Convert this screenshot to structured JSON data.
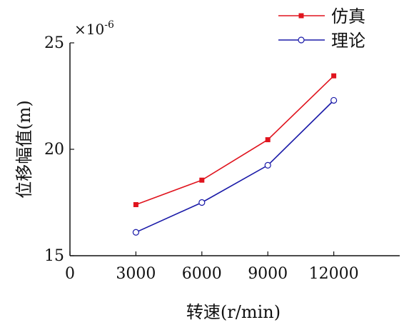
{
  "chart_data": {
    "type": "line",
    "x": [
      3000,
      6000,
      9000,
      12000
    ],
    "xticks": [
      0,
      3000,
      6000,
      9000,
      12000
    ],
    "yticks": [
      15,
      20,
      25
    ],
    "xlim": [
      0,
      15000
    ],
    "ylim": [
      15,
      25
    ],
    "xlabel": "转速(r/min)",
    "ylabel": "位移幅值(m)",
    "y_multiplier": "×10",
    "y_multiplier_exp": "-6",
    "grid": false,
    "legend_position": "top-right",
    "series": [
      {
        "name": "仿真",
        "values": [
          17.4,
          18.55,
          20.45,
          23.45
        ],
        "color": "#e0141e",
        "marker": "square-filled"
      },
      {
        "name": "理论",
        "values": [
          16.1,
          17.5,
          19.25,
          22.3
        ],
        "color": "#1a1aa8",
        "marker": "circle-open"
      }
    ]
  }
}
